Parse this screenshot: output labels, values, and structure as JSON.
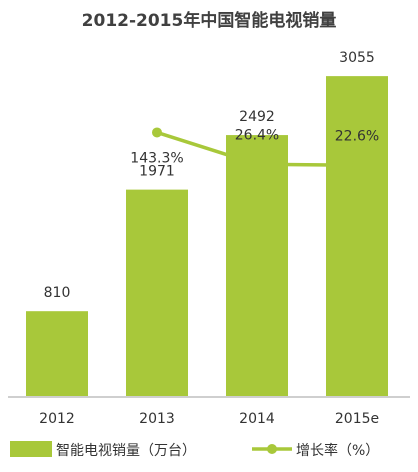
{
  "chart_data": {
    "type": "bar",
    "title": "2012-2015年中国智能电视销量",
    "categories": [
      "2012",
      "2013",
      "2014",
      "2015e"
    ],
    "series": [
      {
        "name": "智能电视销量（万台）",
        "type": "bar",
        "values": [
          810,
          1971,
          2492,
          3055
        ],
        "labels": [
          "810",
          "1971",
          "2492",
          "3055"
        ],
        "color": "#a8c83a"
      },
      {
        "name": "增长率（%）",
        "type": "line",
        "values": [
          null,
          143.3,
          26.4,
          22.6
        ],
        "labels": [
          "",
          "143.3%",
          "26.4%",
          "22.6%"
        ],
        "color": "#a8c83a"
      }
    ],
    "ylim": [
      0,
      3400
    ],
    "grid": false,
    "legend_position": "bottom"
  }
}
